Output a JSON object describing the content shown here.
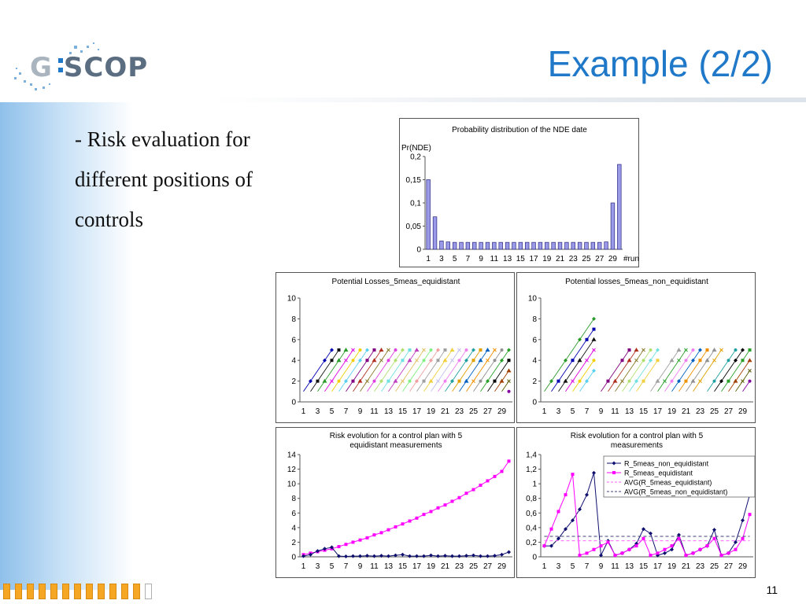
{
  "slide": {
    "title": "Example (2/2)",
    "bullet_lines": [
      "- Risk evaluation for",
      "different positions of",
      "controls"
    ],
    "page_number": "11",
    "logo_text": "SCOP",
    "logo_letter": "G"
  },
  "chart_data": [
    {
      "type": "bar",
      "title": "Probability distribution of the NDE date",
      "ylabel": "Pr(NDE)",
      "xlabel": "#run",
      "ylim": [
        0,
        0.2
      ],
      "yticks": [
        "0",
        "0,05",
        "0,1",
        "0,15",
        "0,2"
      ],
      "xticks": [
        "1",
        "3",
        "5",
        "7",
        "9",
        "11",
        "13",
        "15",
        "17",
        "19",
        "21",
        "23",
        "25",
        "27",
        "29"
      ],
      "categories": [
        1,
        2,
        3,
        4,
        5,
        6,
        7,
        8,
        9,
        10,
        11,
        12,
        13,
        14,
        15,
        16,
        17,
        18,
        19,
        20,
        21,
        22,
        23,
        24,
        25,
        26,
        27,
        28,
        29,
        30
      ],
      "values": [
        0.15,
        0.07,
        0.018,
        0.016,
        0.015,
        0.015,
        0.015,
        0.015,
        0.015,
        0.015,
        0.015,
        0.015,
        0.015,
        0.015,
        0.015,
        0.015,
        0.015,
        0.015,
        0.015,
        0.015,
        0.015,
        0.015,
        0.015,
        0.015,
        0.015,
        0.015,
        0.015,
        0.016,
        0.1,
        0.183
      ],
      "color": "#9a9ae8"
    },
    {
      "type": "line",
      "title": "Potential Losses_5meas_equidistant",
      "ylim": [
        0,
        10
      ],
      "yticks": [
        "0",
        "2",
        "4",
        "6",
        "8",
        "10"
      ],
      "xticks": [
        "1",
        "3",
        "5",
        "7",
        "9",
        "11",
        "13",
        "15",
        "17",
        "19",
        "21",
        "23",
        "25",
        "27",
        "29"
      ],
      "segment_length": 5,
      "segments": [
        {
          "start": 1,
          "color": "#0000b0"
        },
        {
          "start": 2,
          "color": "#111111"
        },
        {
          "start": 3,
          "color": "#2a9a2a"
        },
        {
          "start": 4,
          "color": "#e000e0"
        },
        {
          "start": 5,
          "color": "#f0d000"
        },
        {
          "start": 6,
          "color": "#5ad0f0"
        },
        {
          "start": 7,
          "color": "#800080"
        },
        {
          "start": 8,
          "color": "#b03020"
        },
        {
          "start": 9,
          "color": "#8a7a2a"
        },
        {
          "start": 10,
          "color": "#e040e0"
        },
        {
          "start": 11,
          "color": "#b0e070"
        },
        {
          "start": 12,
          "color": "#70e0e0"
        },
        {
          "start": 13,
          "color": "#c040c0"
        },
        {
          "start": 14,
          "color": "#e0c060"
        },
        {
          "start": 15,
          "color": "#80f080"
        },
        {
          "start": 16,
          "color": "#f0a0a0"
        },
        {
          "start": 17,
          "color": "#a0a0a0"
        },
        {
          "start": 18,
          "color": "#f0d040"
        },
        {
          "start": 19,
          "color": "#c0c0f0"
        },
        {
          "start": 20,
          "color": "#f080f0"
        },
        {
          "start": 21,
          "color": "#20a0a0"
        },
        {
          "start": 22,
          "color": "#e0a000"
        },
        {
          "start": 23,
          "color": "#0060c0"
        },
        {
          "start": 24,
          "color": "#f09000"
        },
        {
          "start": 25,
          "color": "#909090"
        },
        {
          "start": 26,
          "color": "#2aa02a"
        },
        {
          "start": 27,
          "color": "#000000"
        },
        {
          "start": 28,
          "color": "#a04000"
        },
        {
          "start": 29,
          "color": "#5a5a00"
        },
        {
          "start": 30,
          "color": "#8000a0"
        }
      ]
    },
    {
      "type": "line",
      "title": "Potential losses_5meas_non_equidistant",
      "ylim": [
        0,
        10
      ],
      "yticks": [
        "0",
        "2",
        "4",
        "6",
        "8",
        "10"
      ],
      "xticks": [
        "1",
        "3",
        "5",
        "7",
        "9",
        "11",
        "13",
        "15",
        "17",
        "19",
        "21",
        "23",
        "25",
        "27",
        "29"
      ],
      "segments": [
        {
          "start": 1,
          "end": 8,
          "color": "#2a9a2a"
        },
        {
          "start": 2,
          "end": 8,
          "color": "#0000b0"
        },
        {
          "start": 3,
          "end": 8,
          "color": "#111111"
        },
        {
          "start": 4,
          "end": 8,
          "color": "#e000e0"
        },
        {
          "start": 5,
          "end": 8,
          "color": "#f0d000"
        },
        {
          "start": 6,
          "end": 8,
          "color": "#5ad0f0"
        },
        {
          "start": 9,
          "end": 13,
          "color": "#800080"
        },
        {
          "start": 10,
          "end": 14,
          "color": "#b03020"
        },
        {
          "start": 11,
          "end": 15,
          "color": "#8a7a2a"
        },
        {
          "start": 12,
          "end": 16,
          "color": "#b0e070"
        },
        {
          "start": 13,
          "end": 17,
          "color": "#70e0e0"
        },
        {
          "start": 14,
          "end": 17,
          "color": "#f0d040"
        },
        {
          "start": 16,
          "end": 20,
          "color": "#a0a0a0"
        },
        {
          "start": 17,
          "end": 21,
          "color": "#2aa02a"
        },
        {
          "start": 18,
          "end": 22,
          "color": "#f080f0"
        },
        {
          "start": 19,
          "end": 23,
          "color": "#0060c0"
        },
        {
          "start": 20,
          "end": 24,
          "color": "#f09000"
        },
        {
          "start": 21,
          "end": 25,
          "color": "#909090"
        },
        {
          "start": 22,
          "end": 26,
          "color": "#e0a000"
        },
        {
          "start": 24,
          "end": 28,
          "color": "#20a0a0"
        },
        {
          "start": 25,
          "end": 29,
          "color": "#000000"
        },
        {
          "start": 26,
          "end": 30,
          "color": "#2aa02a"
        },
        {
          "start": 27,
          "end": 30,
          "color": "#a04000"
        },
        {
          "start": 28,
          "end": 30,
          "color": "#5a5a00"
        },
        {
          "start": 29,
          "end": 30,
          "color": "#8000a0"
        }
      ]
    },
    {
      "type": "line",
      "title": "Risk evolution for a control plan with 5 equidistant measurements",
      "title_lines": [
        "Risk evolution for a control plan with 5",
        "equidistant measurements"
      ],
      "ylim": [
        0,
        14
      ],
      "yticks": [
        "0",
        "2",
        "4",
        "6",
        "8",
        "10",
        "12",
        "14"
      ],
      "xticks": [
        "1",
        "3",
        "5",
        "7",
        "9",
        "11",
        "13",
        "15",
        "17",
        "19",
        "21",
        "23",
        "25",
        "27",
        "29"
      ],
      "x": [
        1,
        2,
        3,
        4,
        5,
        6,
        7,
        8,
        9,
        10,
        11,
        12,
        13,
        14,
        15,
        16,
        17,
        18,
        19,
        20,
        21,
        22,
        23,
        24,
        25,
        26,
        27,
        28,
        29,
        30
      ],
      "series": [
        {
          "color": "#ff00ff",
          "marker": "square",
          "values": [
            0.3,
            0.5,
            0.7,
            0.9,
            1.1,
            1.4,
            1.7,
            2.0,
            2.3,
            2.6,
            3.0,
            3.3,
            3.7,
            4.1,
            4.5,
            4.9,
            5.3,
            5.8,
            6.2,
            6.7,
            7.1,
            7.6,
            8.1,
            8.7,
            9.2,
            9.8,
            10.4,
            11.0,
            11.7,
            13.1
          ]
        },
        {
          "color": "#101070",
          "marker": "diamond",
          "values": [
            0.1,
            0.3,
            0.8,
            1.1,
            1.3,
            0.1,
            0.05,
            0.1,
            0.1,
            0.15,
            0.1,
            0.15,
            0.1,
            0.2,
            0.3,
            0.1,
            0.1,
            0.1,
            0.2,
            0.1,
            0.15,
            0.1,
            0.1,
            0.15,
            0.2,
            0.1,
            0.1,
            0.15,
            0.3,
            0.65
          ]
        }
      ]
    },
    {
      "type": "line",
      "title": "Risk evolution for a control plan with 5 measurements",
      "title_lines": [
        "Risk evolution for a control plan with 5",
        "measurements"
      ],
      "ylim": [
        0,
        1.4
      ],
      "yticks": [
        "0",
        "0,2",
        "0,4",
        "0,6",
        "0,8",
        "1",
        "1,2",
        "1,4"
      ],
      "xticks": [
        "1",
        "3",
        "5",
        "7",
        "9",
        "11",
        "13",
        "15",
        "17",
        "19",
        "21",
        "23",
        "25",
        "27",
        "29"
      ],
      "legend_position": "top-right",
      "x": [
        1,
        2,
        3,
        4,
        5,
        6,
        7,
        8,
        9,
        10,
        11,
        12,
        13,
        14,
        15,
        16,
        17,
        18,
        19,
        20,
        21,
        22,
        23,
        24,
        25,
        26,
        27,
        28,
        29,
        30
      ],
      "series": [
        {
          "name": "R_5meas_non_equidistant",
          "color": "#101070",
          "marker": "diamond",
          "dash": false,
          "values": [
            0.15,
            0.15,
            0.25,
            0.38,
            0.5,
            0.65,
            0.85,
            1.15,
            0.02,
            0.22,
            0.02,
            0.05,
            0.1,
            0.18,
            0.38,
            0.32,
            0.02,
            0.05,
            0.1,
            0.3,
            0.02,
            0.05,
            0.1,
            0.15,
            0.37,
            0.02,
            0.05,
            0.2,
            0.5,
            0.85
          ]
        },
        {
          "name": "R_5meas_equidistant",
          "color": "#ff00ff",
          "marker": "square",
          "dash": false,
          "values": [
            0.15,
            0.38,
            0.62,
            0.85,
            1.13,
            0.02,
            0.05,
            0.1,
            0.15,
            0.2,
            0.02,
            0.05,
            0.1,
            0.15,
            0.25,
            0.02,
            0.05,
            0.1,
            0.15,
            0.25,
            0.02,
            0.05,
            0.1,
            0.15,
            0.25,
            0.02,
            0.05,
            0.1,
            0.25,
            0.58
          ]
        },
        {
          "name": "AVG(R_5meas_equidistant)",
          "color": "#ff66ff",
          "marker": "none",
          "dash": true,
          "constant": 0.22
        },
        {
          "name": "AVG(R_5meas_non_equidistant)",
          "color": "#404070",
          "marker": "none",
          "dash": true,
          "constant": 0.28
        }
      ]
    }
  ]
}
